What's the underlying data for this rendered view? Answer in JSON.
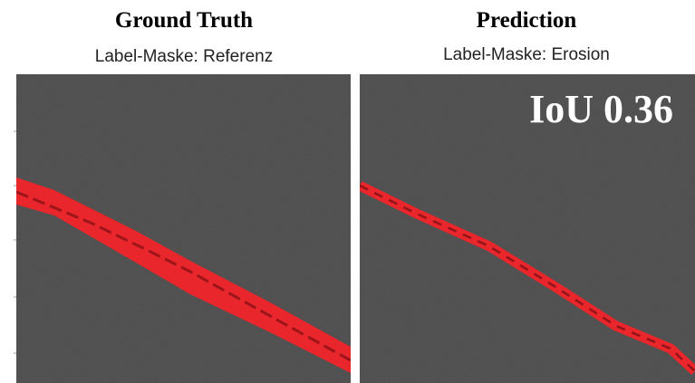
{
  "panels": [
    {
      "title": "Ground Truth",
      "subtitle": "Label-Maske: Referenz"
    },
    {
      "title": "Prediction",
      "subtitle": "Label-Maske: Erosion",
      "overlay": "IoU 0.36"
    }
  ]
}
